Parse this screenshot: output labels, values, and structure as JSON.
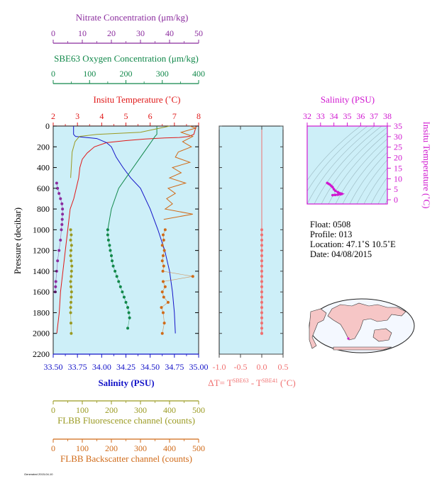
{
  "colors": {
    "nitrate": "#8b2c9e",
    "oxygen": "#11884a",
    "temperature": "#e01818",
    "salinity": "#1414c8",
    "fluorescence": "#9a9a22",
    "backscatter": "#d06a18",
    "delta": "#f07070",
    "ts": "#d018d0",
    "panel_bg": "#cdeff8"
  },
  "axes": {
    "nitrate": {
      "label": "Nitrate Concentration (μm/kg)",
      "ticks": [
        "0",
        "10",
        "20",
        "30",
        "40",
        "50"
      ],
      "range": [
        0,
        50
      ]
    },
    "oxygen": {
      "label": "SBE63 Oxygen Concentration (μm/kg)",
      "ticks": [
        "0",
        "100",
        "200",
        "300",
        "400"
      ],
      "range": [
        0,
        400
      ]
    },
    "temperature": {
      "label": "Insitu Temperature (˚C)",
      "ticks": [
        "2",
        "3",
        "4",
        "5",
        "6",
        "7",
        "8"
      ],
      "range": [
        2,
        8
      ]
    },
    "salinity": {
      "label": "Salinity (PSU)",
      "ticks": [
        "33.50",
        "33.75",
        "34.00",
        "34.25",
        "34.50",
        "34.75",
        "35.00"
      ],
      "range": [
        33.5,
        35.0
      ]
    },
    "fluorescence": {
      "label": "FLBB Fluorescence channel (counts)",
      "ticks": [
        "0",
        "100",
        "200",
        "300",
        "400",
        "500"
      ],
      "range": [
        0,
        500
      ]
    },
    "backscatter": {
      "label": "FLBB Backscatter channel (counts)",
      "ticks": [
        "0",
        "100",
        "200",
        "300",
        "400",
        "500"
      ],
      "range": [
        0,
        500
      ]
    },
    "pressure": {
      "label": "Pressure (decibar)",
      "ticks": [
        "0",
        "200",
        "400",
        "600",
        "800",
        "1000",
        "1200",
        "1400",
        "1600",
        "1800",
        "2000",
        "2200"
      ],
      "range": [
        0,
        2200
      ]
    },
    "delta": {
      "label_main": "ΔT= T",
      "sup1": "SBE63",
      "label_mid": " - T",
      "sup2": "SBE41",
      "label_end": " (˚C)",
      "ticks": [
        "-1.0",
        "-0.5",
        "0.0",
        "0.5"
      ],
      "range": [
        -1.0,
        0.5
      ]
    },
    "ts_salinity": {
      "label": "Salinity (PSU)",
      "ticks": [
        "32",
        "33",
        "34",
        "35",
        "36",
        "37",
        "38"
      ],
      "range": [
        32,
        38
      ]
    },
    "ts_temperature": {
      "label": "Insitu Temperature (˚C)",
      "ticks": [
        "0",
        "5",
        "10",
        "15",
        "20",
        "25",
        "30",
        "35"
      ],
      "range": [
        -2,
        35
      ]
    }
  },
  "info": {
    "float": "Float:  0508",
    "profile": "Profile:  013",
    "location": "Location:  47.1˚S  10.5˚E",
    "date": "Date:  04/08/2015"
  },
  "footer": "Generated 2015-04-10",
  "chart_data": [
    {
      "type": "line",
      "title": "",
      "ylabel": "Pressure (decibar)",
      "ylim": [
        2200,
        0
      ],
      "series": [
        {
          "name": "Insitu Temperature (˚C)",
          "axis": "temperature",
          "x": [
            7.9,
            7.8,
            7.6,
            7.2,
            6.6,
            5.8,
            5.0,
            4.2,
            3.7,
            3.4,
            3.2,
            3.1,
            3.05,
            2.95,
            2.85,
            2.7,
            2.6,
            2.5,
            2.4,
            2.3,
            2.25,
            2.2,
            2.15
          ],
          "y": [
            0,
            80,
            100,
            110,
            115,
            125,
            140,
            160,
            200,
            260,
            320,
            400,
            500,
            600,
            700,
            800,
            1000,
            1200,
            1400,
            1600,
            1800,
            1900,
            2000
          ]
        },
        {
          "name": "Salinity (PSU)",
          "axis": "salinity",
          "x": [
            33.71,
            33.71,
            33.73,
            33.95,
            34.05,
            34.1,
            34.15,
            34.22,
            34.3,
            34.4,
            34.5,
            34.58,
            34.65,
            34.7,
            34.73,
            34.75,
            34.76
          ],
          "y": [
            0,
            80,
            100,
            120,
            160,
            200,
            300,
            400,
            500,
            600,
            800,
            1000,
            1200,
            1400,
            1600,
            1800,
            2000
          ]
        },
        {
          "name": "SBE63 Oxygen Concentration (μm/kg)",
          "axis": "oxygen",
          "x": [
            285,
            285,
            280,
            270,
            260,
            240,
            220,
            200,
            180,
            170,
            160,
            155,
            150
          ],
          "y": [
            0,
            80,
            100,
            150,
            200,
            300,
            400,
            500,
            600,
            700,
            800,
            900,
            1000
          ]
        },
        {
          "name": "FLBB Fluorescence channel (counts)",
          "axis": "fluorescence",
          "x": [
            400,
            300,
            150,
            90,
            75,
            65,
            60
          ],
          "y": [
            0,
            60,
            80,
            100,
            150,
            250,
            500
          ]
        },
        {
          "name": "FLBB Backscatter channel (counts)",
          "axis": "backscatter",
          "x": [
            470,
            490,
            440,
            480,
            445,
            475,
            430,
            420,
            470,
            410,
            440,
            400,
            455,
            395,
            420,
            390,
            410,
            385,
            480,
            380
          ],
          "y": [
            0,
            20,
            60,
            100,
            150,
            200,
            250,
            300,
            350,
            400,
            450,
            500,
            550,
            600,
            650,
            700,
            750,
            800,
            850,
            900
          ]
        }
      ],
      "points": [
        {
          "name": "Nitrate",
          "axis": "nitrate",
          "style": "dots",
          "x": [
            1.2,
            1.5,
            2.0,
            2.5,
            3.0,
            3.2,
            3.2,
            3.1,
            3.0,
            2.8,
            2.5,
            2.0,
            1.5,
            1.2,
            0.9,
            0.8,
            0.7
          ],
          "y": [
            550,
            600,
            650,
            700,
            750,
            800,
            850,
            900,
            950,
            1000,
            1100,
            1200,
            1300,
            1400,
            1500,
            1550,
            1600
          ]
        },
        {
          "name": "Oxygen bottles",
          "axis": "oxygen",
          "style": "dots",
          "x": [
            150,
            150,
            152,
            155,
            157,
            160,
            162,
            165,
            170,
            175,
            180,
            185,
            190,
            195,
            200,
            205,
            208,
            210,
            205
          ],
          "y": [
            1000,
            1050,
            1100,
            1150,
            1200,
            1250,
            1300,
            1350,
            1400,
            1450,
            1500,
            1550,
            1600,
            1650,
            1700,
            1750,
            1800,
            1850,
            1950
          ]
        },
        {
          "name": "Fluorescence bins",
          "axis": "fluorescence",
          "style": "dots",
          "x": [
            60,
            62,
            60,
            63,
            61,
            60,
            62,
            64,
            63,
            62,
            60,
            61,
            63,
            62,
            61,
            60,
            60,
            61,
            62
          ],
          "y": [
            1000,
            1050,
            1100,
            1150,
            1200,
            1250,
            1300,
            1350,
            1400,
            1450,
            1500,
            1550,
            1600,
            1650,
            1700,
            1750,
            1800,
            1900,
            2000
          ]
        },
        {
          "name": "Backscatter bins",
          "axis": "backscatter",
          "style": "dots",
          "x": [
            385,
            378,
            380,
            375,
            382,
            378,
            375,
            380,
            377,
            480,
            378,
            385,
            375,
            380,
            395,
            372,
            378,
            382,
            375
          ],
          "y": [
            1000,
            1050,
            1100,
            1150,
            1200,
            1250,
            1300,
            1350,
            1400,
            1450,
            1500,
            1550,
            1600,
            1650,
            1700,
            1750,
            1800,
            1900,
            2000
          ]
        }
      ]
    },
    {
      "type": "scatter",
      "title": "",
      "xlabel": "ΔT= TSBE63 - TSBE41 (˚C)",
      "ylim": [
        2200,
        0
      ],
      "series": [
        {
          "name": "delta",
          "x": [
            0.0,
            0.0,
            0.0,
            0.0,
            0.0,
            0.0,
            0.0,
            0.0,
            0.0,
            0.0,
            0.0,
            0.0,
            0.0,
            0.0,
            0.0,
            0.0,
            0.0,
            0.0,
            0.0,
            0.0,
            0.0,
            0.0
          ],
          "y": [
            1000,
            1050,
            1100,
            1150,
            1200,
            1250,
            1300,
            1350,
            1400,
            1450,
            1500,
            1550,
            1600,
            1650,
            1700,
            1750,
            1800,
            1850,
            1900,
            1950,
            2000,
            2000
          ]
        }
      ]
    },
    {
      "type": "scatter",
      "title": "",
      "xlabel": "Salinity (PSU)",
      "ylabel": "Insitu Temperature (˚C)",
      "xlim": [
        32,
        38
      ],
      "ylim": [
        -2,
        35
      ],
      "series": [
        {
          "name": "T-S",
          "x": [
            33.5,
            33.6,
            33.7,
            33.8,
            33.9,
            34.0,
            34.1,
            34.3,
            34.4,
            34.5,
            34.6,
            34.5,
            34.3,
            34.1,
            33.9
          ],
          "y": [
            8.0,
            7.6,
            7.2,
            6.6,
            6.0,
            5.0,
            4.3,
            3.6,
            3.2,
            3.0,
            2.8,
            2.6,
            2.4,
            2.3,
            2.2
          ]
        }
      ]
    }
  ]
}
